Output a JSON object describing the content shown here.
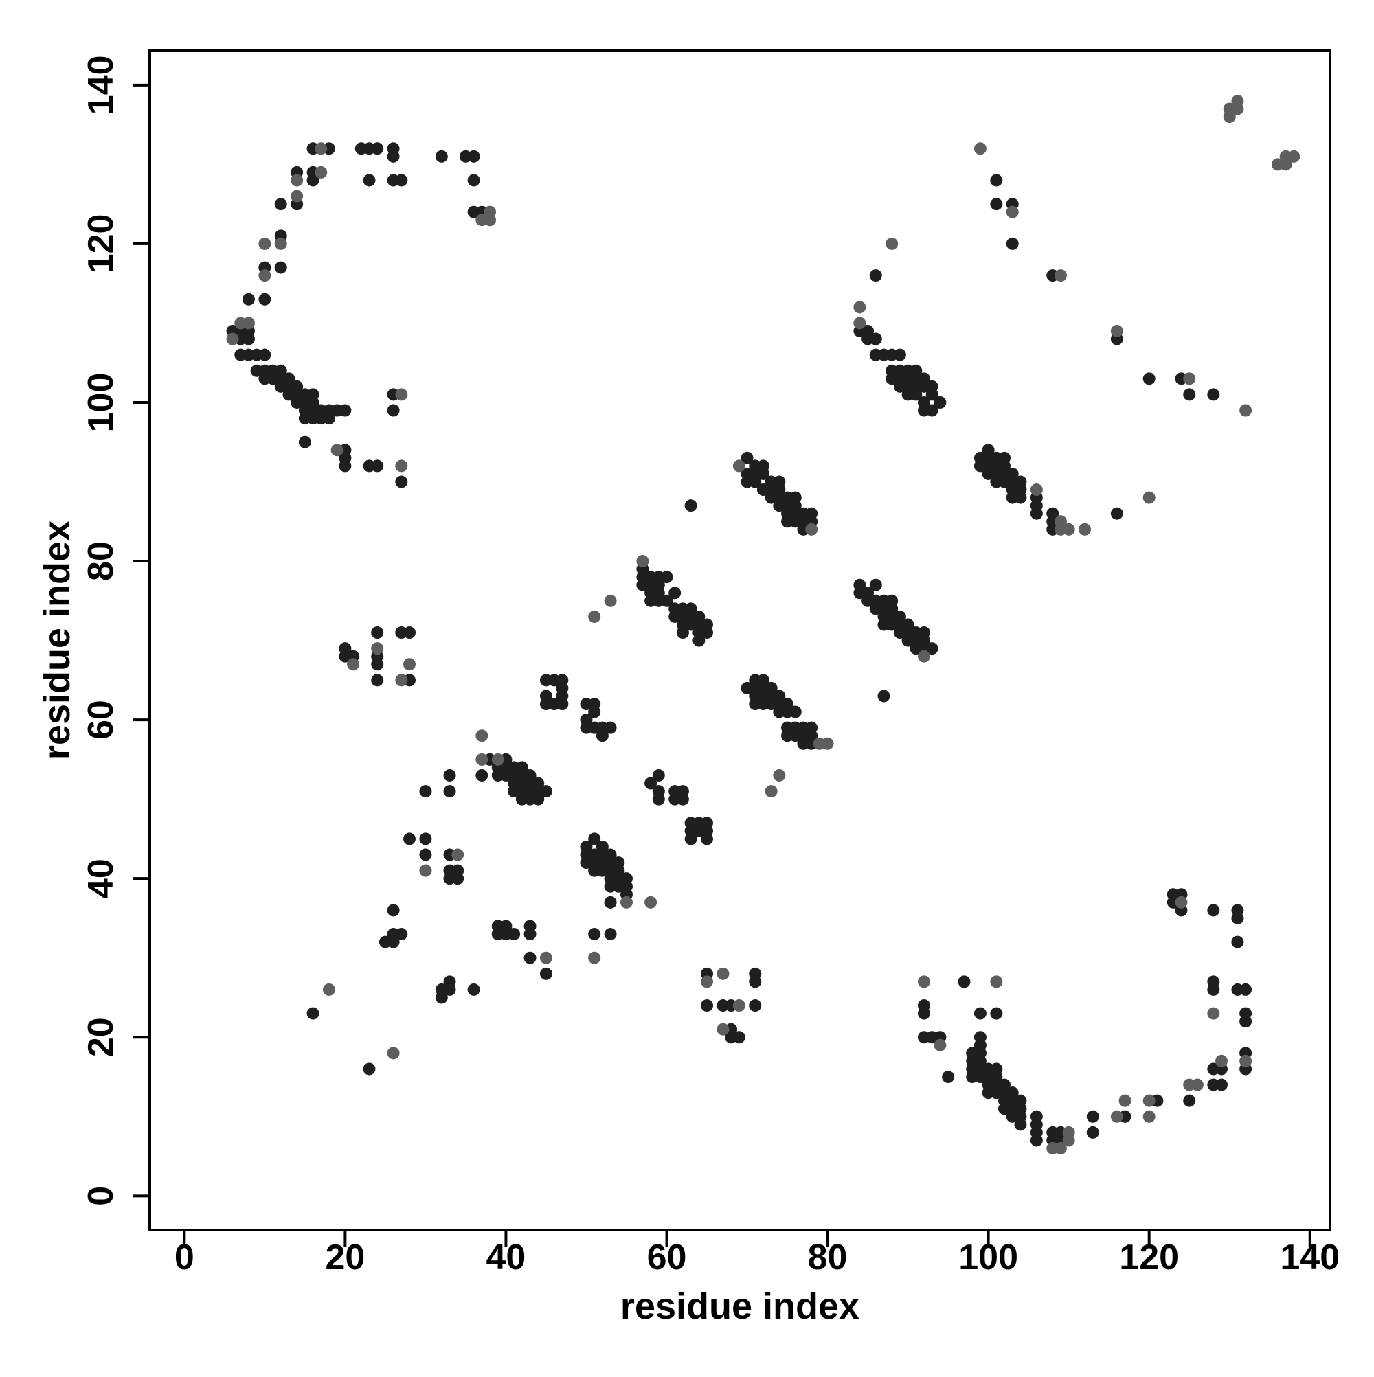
{
  "chart_data": {
    "type": "scatter",
    "xlabel": "residue index",
    "ylabel": "residue index",
    "xlim": [
      -4.3,
      142.5
    ],
    "ylim": [
      -4.3,
      144.4
    ],
    "xticks": [
      0,
      20,
      40,
      60,
      80,
      100,
      120,
      140
    ],
    "yticks": [
      0,
      20,
      40,
      60,
      80,
      100,
      120,
      140
    ],
    "series": [
      {
        "color": "#1f1f1f",
        "x": [
          6,
          7,
          7,
          8,
          8,
          7,
          8,
          9,
          10,
          9,
          10,
          10,
          11,
          11,
          12,
          12,
          12,
          13,
          13,
          13,
          14,
          14,
          14,
          15,
          15,
          15,
          15,
          16,
          16,
          16,
          16,
          17,
          17,
          18,
          18,
          19,
          20,
          15,
          20,
          20,
          20,
          23,
          24,
          26,
          26,
          27,
          8,
          10,
          10,
          12,
          12,
          12,
          14,
          14,
          16,
          16,
          16,
          18,
          22,
          23,
          24,
          23,
          26,
          26,
          26,
          27,
          32,
          35,
          36,
          36,
          36,
          37,
          70,
          70,
          70,
          71,
          71,
          71,
          72,
          72,
          72,
          73,
          73,
          73,
          74,
          74,
          74,
          74,
          75,
          75,
          75,
          75,
          76,
          76,
          76,
          76,
          77,
          77,
          77,
          78,
          78,
          63,
          57,
          57,
          57,
          58,
          58,
          58,
          58,
          59,
          59,
          59,
          59,
          60,
          60,
          61,
          61,
          61,
          62,
          62,
          62,
          62,
          63,
          63,
          63,
          64,
          64,
          64,
          64,
          65,
          65,
          84,
          84,
          85,
          85,
          86,
          86,
          86,
          87,
          87,
          87,
          87,
          88,
          88,
          88,
          88,
          89,
          89,
          89,
          90,
          90,
          90,
          91,
          91,
          91,
          92,
          92,
          92,
          93,
          87,
          70,
          71,
          71,
          71,
          71,
          72,
          72,
          72,
          72,
          73,
          73,
          73,
          74,
          74,
          74,
          75,
          75,
          75,
          75,
          76,
          76,
          76,
          77,
          77,
          77,
          78,
          78,
          78,
          45,
          45,
          45,
          46,
          46,
          47,
          47,
          47,
          47,
          50,
          50,
          50,
          51,
          51,
          51,
          52,
          52,
          53,
          37,
          38,
          39,
          39,
          40,
          40,
          40,
          41,
          41,
          41,
          41,
          42,
          42,
          42,
          42,
          42,
          43,
          43,
          43,
          43,
          44,
          44,
          44,
          45,
          30,
          33,
          33,
          58,
          59,
          59,
          59,
          61,
          61,
          62,
          62,
          63,
          63,
          63,
          64,
          64,
          65,
          65,
          65,
          50,
          50,
          50,
          51,
          51,
          51,
          51,
          52,
          52,
          52,
          52,
          53,
          53,
          53,
          53,
          53,
          53,
          54,
          54,
          54,
          54,
          55,
          55,
          55,
          28,
          30,
          30,
          33,
          33,
          33,
          34,
          34,
          39,
          39,
          40,
          40,
          41,
          43,
          43,
          45,
          51,
          53,
          26,
          26,
          27,
          25,
          26,
          32,
          32,
          33,
          33,
          36,
          16,
          23,
          43,
          20,
          20,
          21,
          24,
          24,
          24,
          24,
          27,
          28,
          28,
          65,
          65,
          67,
          68,
          68,
          68,
          69,
          71,
          71,
          71,
          98,
          98,
          98,
          98,
          99,
          99,
          99,
          99,
          99,
          99,
          100,
          100,
          100,
          100,
          101,
          101,
          101,
          101,
          102,
          102,
          102,
          102,
          103,
          103,
          103,
          103,
          104,
          104,
          104,
          104,
          106,
          106,
          106,
          106,
          108,
          108,
          109,
          109,
          113,
          113,
          117,
          121,
          95,
          99,
          101,
          97,
          92,
          92,
          92,
          93,
          94,
          123,
          123,
          124,
          124,
          128,
          128,
          128,
          131,
          131,
          131,
          131,
          132,
          132,
          132,
          132,
          132,
          129,
          129,
          128,
          128,
          125,
          84,
          85,
          85,
          86,
          86,
          87,
          88,
          88,
          88,
          89,
          89,
          89,
          89,
          90,
          90,
          90,
          90,
          91,
          91,
          91,
          91,
          92,
          92,
          92,
          92,
          93,
          93,
          93,
          94,
          86,
          99,
          99,
          100,
          100,
          100,
          100,
          101,
          101,
          101,
          101,
          102,
          102,
          102,
          102,
          103,
          103,
          103,
          103,
          104,
          104,
          104,
          106,
          106,
          106,
          108,
          108,
          108,
          116,
          101,
          101,
          103,
          103,
          108,
          116,
          120,
          124,
          125,
          128
        ],
        "y": [
          109,
          109,
          108,
          109,
          108,
          106,
          106,
          106,
          106,
          104,
          104,
          103,
          104,
          103,
          104,
          103,
          102,
          103,
          102,
          101,
          102,
          101,
          100,
          101,
          100,
          99,
          98,
          101,
          100,
          99,
          98,
          98,
          99,
          99,
          98,
          99,
          99,
          95,
          94,
          93,
          92,
          92,
          92,
          99,
          101,
          90,
          113,
          113,
          117,
          117,
          121,
          125,
          125,
          129,
          128,
          129,
          132,
          132,
          132,
          132,
          132,
          128,
          132,
          131,
          128,
          128,
          131,
          131,
          131,
          128,
          124,
          124,
          93,
          91,
          90,
          92,
          91,
          90,
          92,
          91,
          89,
          90,
          89,
          88,
          90,
          89,
          88,
          87,
          88,
          87,
          86,
          85,
          88,
          87,
          86,
          85,
          86,
          85,
          84,
          86,
          85,
          87,
          79,
          78,
          77,
          78,
          77,
          76,
          75,
          78,
          77,
          76,
          75,
          78,
          75,
          76,
          74,
          73,
          74,
          73,
          72,
          71,
          74,
          73,
          72,
          73,
          72,
          71,
          70,
          72,
          71,
          77,
          76,
          76,
          75,
          77,
          75,
          74,
          75,
          74,
          73,
          72,
          75,
          74,
          73,
          72,
          73,
          72,
          71,
          72,
          71,
          70,
          71,
          70,
          69,
          71,
          70,
          69,
          69,
          63,
          64,
          65,
          64,
          63,
          62,
          65,
          64,
          63,
          62,
          64,
          63,
          62,
          63,
          62,
          61,
          62,
          61,
          59,
          58,
          61,
          59,
          58,
          59,
          58,
          57,
          59,
          58,
          57,
          65,
          63,
          62,
          65,
          62,
          65,
          64,
          63,
          62,
          62,
          60,
          59,
          62,
          61,
          59,
          59,
          58,
          59,
          53,
          55,
          54,
          53,
          55,
          54,
          53,
          54,
          53,
          52,
          51,
          54,
          53,
          52,
          51,
          50,
          53,
          52,
          51,
          50,
          52,
          51,
          50,
          51,
          51,
          53,
          51,
          52,
          53,
          51,
          50,
          51,
          50,
          51,
          50,
          47,
          46,
          45,
          47,
          46,
          47,
          46,
          45,
          44,
          43,
          42,
          45,
          43,
          42,
          41,
          44,
          43,
          42,
          41,
          43,
          42,
          41,
          40,
          39,
          37,
          42,
          41,
          40,
          39,
          40,
          39,
          38,
          45,
          45,
          43,
          43,
          41,
          40,
          41,
          40,
          34,
          33,
          34,
          33,
          33,
          34,
          33,
          28,
          33,
          33,
          36,
          33,
          33,
          32,
          32,
          26,
          25,
          27,
          26,
          26,
          23,
          16,
          30,
          69,
          68,
          68,
          71,
          68,
          67,
          65,
          71,
          71,
          65,
          28,
          24,
          24,
          24,
          21,
          20,
          20,
          28,
          27,
          24,
          18,
          17,
          16,
          15,
          20,
          19,
          18,
          17,
          16,
          15,
          16,
          15,
          14,
          13,
          16,
          15,
          14,
          13,
          14,
          13,
          12,
          11,
          13,
          12,
          11,
          10,
          12,
          11,
          10,
          9,
          10,
          9,
          8,
          7,
          8,
          7,
          8,
          7,
          10,
          8,
          10,
          12,
          15,
          23,
          23,
          27,
          24,
          23,
          20,
          20,
          20,
          38,
          37,
          38,
          36,
          36,
          27,
          26,
          36,
          35,
          32,
          26,
          26,
          23,
          22,
          18,
          16,
          16,
          14,
          16,
          14,
          12,
          109,
          109,
          108,
          108,
          106,
          106,
          106,
          104,
          103,
          106,
          104,
          103,
          102,
          104,
          103,
          102,
          101,
          104,
          103,
          102,
          101,
          103,
          102,
          100,
          99,
          102,
          101,
          99,
          100,
          116,
          93,
          92,
          94,
          93,
          92,
          91,
          93,
          92,
          91,
          90,
          93,
          92,
          91,
          90,
          91,
          90,
          89,
          88,
          90,
          89,
          88,
          88,
          87,
          86,
          86,
          85,
          84,
          86,
          128,
          125,
          125,
          120,
          116,
          108,
          103,
          103,
          101,
          101
        ]
      },
      {
        "color": "#5e5e5e",
        "x": [
          6,
          7,
          8,
          10,
          10,
          12,
          14,
          14,
          17,
          17,
          19,
          27,
          27,
          37,
          38,
          38,
          69,
          78,
          57,
          53,
          51,
          92,
          79,
          80,
          74,
          73,
          37,
          37,
          39,
          30,
          34,
          45,
          51,
          18,
          26,
          21,
          24,
          27,
          28,
          65,
          67,
          67,
          69,
          55,
          58,
          108,
          109,
          110,
          110,
          116,
          117,
          120,
          120,
          101,
          92,
          94,
          124,
          128,
          132,
          129,
          126,
          125,
          84,
          84,
          88,
          106,
          109,
          109,
          110,
          112,
          120,
          99,
          103,
          109,
          116,
          125,
          132,
          130,
          130,
          131,
          131,
          136,
          137,
          137,
          138
        ],
        "y": [
          108,
          110,
          110,
          116,
          120,
          120,
          126,
          128,
          129,
          132,
          94,
          92,
          101,
          123,
          123,
          124,
          92,
          84,
          80,
          75,
          73,
          68,
          57,
          57,
          53,
          51,
          58,
          55,
          55,
          41,
          43,
          30,
          30,
          26,
          18,
          67,
          69,
          65,
          67,
          27,
          28,
          21,
          24,
          37,
          37,
          6,
          6,
          8,
          7,
          10,
          12,
          12,
          10,
          27,
          27,
          19,
          37,
          23,
          17,
          17,
          14,
          14,
          112,
          110,
          120,
          89,
          85,
          84,
          84,
          84,
          88,
          132,
          124,
          116,
          109,
          103,
          99,
          136,
          137,
          137,
          138,
          130,
          130,
          131,
          131
        ]
      }
    ]
  }
}
